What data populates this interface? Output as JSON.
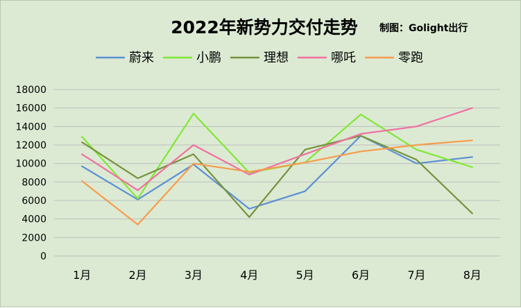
{
  "chart_data": {
    "type": "line",
    "title": "2022年新势力交付走势",
    "subtitle": "制图：Golight出行",
    "xlabel": "",
    "ylabel": "",
    "categories": [
      "1月",
      "2月",
      "3月",
      "4月",
      "5月",
      "6月",
      "7月",
      "8月"
    ],
    "ylim": [
      0,
      18000
    ],
    "yticks": [
      0,
      2000,
      4000,
      6000,
      8000,
      10000,
      12000,
      14000,
      16000,
      18000
    ],
    "grid": true,
    "legend_position": "top",
    "series": [
      {
        "name": "蔚来",
        "color": "#5b8fd4",
        "values": [
          9700,
          6100,
          9900,
          5100,
          7000,
          13000,
          10000,
          10700
        ]
      },
      {
        "name": "小鹏",
        "color": "#7ee832",
        "values": [
          12900,
          6200,
          15400,
          9000,
          10100,
          15300,
          11500,
          9600
        ]
      },
      {
        "name": "理想",
        "color": "#76923c",
        "values": [
          12300,
          8400,
          11000,
          4200,
          11500,
          13000,
          10400,
          4600
        ]
      },
      {
        "name": "哪吒",
        "color": "#f06fa0",
        "values": [
          11000,
          7100,
          12000,
          8800,
          11000,
          13200,
          14000,
          16000
        ]
      },
      {
        "name": "零跑",
        "color": "#f79b4d",
        "values": [
          8100,
          3400,
          10000,
          9100,
          10100,
          11300,
          12000,
          12500
        ]
      }
    ]
  }
}
